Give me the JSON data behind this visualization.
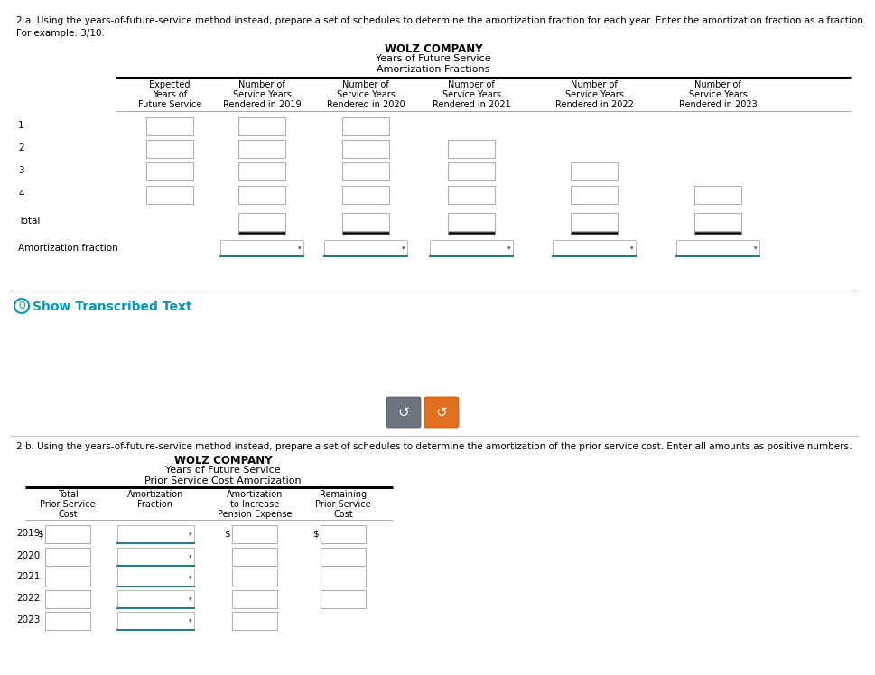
{
  "bg_color": "#ffffff",
  "instruction_text_1a": "2 a. Using the years-of-future-service method instead, prepare a set of schedules to determine the amortization fraction for each year. Enter the amortization fraction as a fraction.",
  "instruction_text_1b": "For example: 3/10.",
  "title1_line1": "WOLZ COMPANY",
  "title1_line2": "Years of Future Service",
  "title1_line3": "Amortization Fractions",
  "col_headers": [
    "Expected\nYears of\nFuture Service",
    "Number of\nService Years\nRendered in 2019",
    "Number of\nService Years\nRendered in 2020",
    "Number of\nService Years\nRendered in 2021",
    "Number of\nService Years\nRendered in 2022",
    "Number of\nService Years\nRendered in 2023"
  ],
  "row_labels_top": [
    "1",
    "2",
    "3",
    "4",
    "Total",
    "Amortization fraction"
  ],
  "instruction_text_2": "2 b. Using the years-of-future-service method instead, prepare a set of schedules to determine the amortization of the prior service cost. Enter all amounts as positive numbers.",
  "title2_line1": "WOLZ COMPANY",
  "title2_line2": "Years of Future Service",
  "title2_line3": "Prior Service Cost Amortization",
  "col_headers2": [
    "Total\nPrior Service\nCost",
    "Amortization\nFraction",
    "Amortization\nto Increase\nPension Expense",
    "Remaining\nPrior Service\nCost"
  ],
  "row_labels_bottom": [
    "2019",
    "2020",
    "2021",
    "2022",
    "2023"
  ],
  "show_transcribed_color": "#009bbb",
  "btn1_color": "#6c757d",
  "btn2_color": "#e07020",
  "box_border_color": "#b0b0b0",
  "dropdown_line_color": "#2a7a8a",
  "separator_color": "#cccccc",
  "table_line_color": "#000000"
}
